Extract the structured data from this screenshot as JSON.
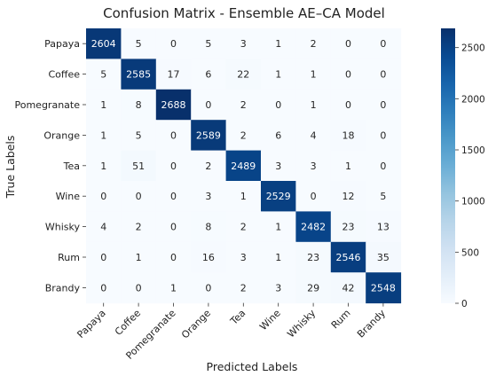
{
  "chart_data": {
    "type": "heatmap",
    "title": "Confusion Matrix - Ensemble AE–CA Model",
    "xlabel": "Predicted Labels",
    "ylabel": "True Labels",
    "x_labels": [
      "Papaya",
      "Coffee",
      "Pomegranate",
      "Orange",
      "Tea",
      "Wine",
      "Whisky",
      "Rum",
      "Brandy"
    ],
    "y_labels": [
      "Papaya",
      "Coffee",
      "Pomegranate",
      "Orange",
      "Tea",
      "Wine",
      "Whisky",
      "Rum",
      "Brandy"
    ],
    "values": [
      [
        2604,
        5,
        0,
        5,
        3,
        1,
        2,
        0,
        0
      ],
      [
        5,
        2585,
        17,
        6,
        22,
        1,
        1,
        0,
        0
      ],
      [
        1,
        8,
        2688,
        0,
        2,
        0,
        1,
        0,
        0
      ],
      [
        1,
        5,
        0,
        2589,
        2,
        6,
        4,
        18,
        0
      ],
      [
        1,
        51,
        0,
        2,
        2489,
        3,
        3,
        1,
        0
      ],
      [
        0,
        0,
        0,
        3,
        1,
        2529,
        0,
        12,
        5
      ],
      [
        4,
        2,
        0,
        8,
        2,
        1,
        2482,
        23,
        13
      ],
      [
        0,
        1,
        0,
        16,
        3,
        1,
        23,
        2546,
        35
      ],
      [
        0,
        0,
        1,
        0,
        2,
        3,
        29,
        42,
        2548
      ]
    ],
    "colorbar": {
      "min": 0,
      "max": 2688,
      "ticks": [
        0,
        500,
        1000,
        1500,
        2000,
        2500
      ],
      "colormap": "Blues",
      "low_color": "#f7fbff",
      "high_color": "#08306b"
    },
    "annotations": "cell counts"
  }
}
